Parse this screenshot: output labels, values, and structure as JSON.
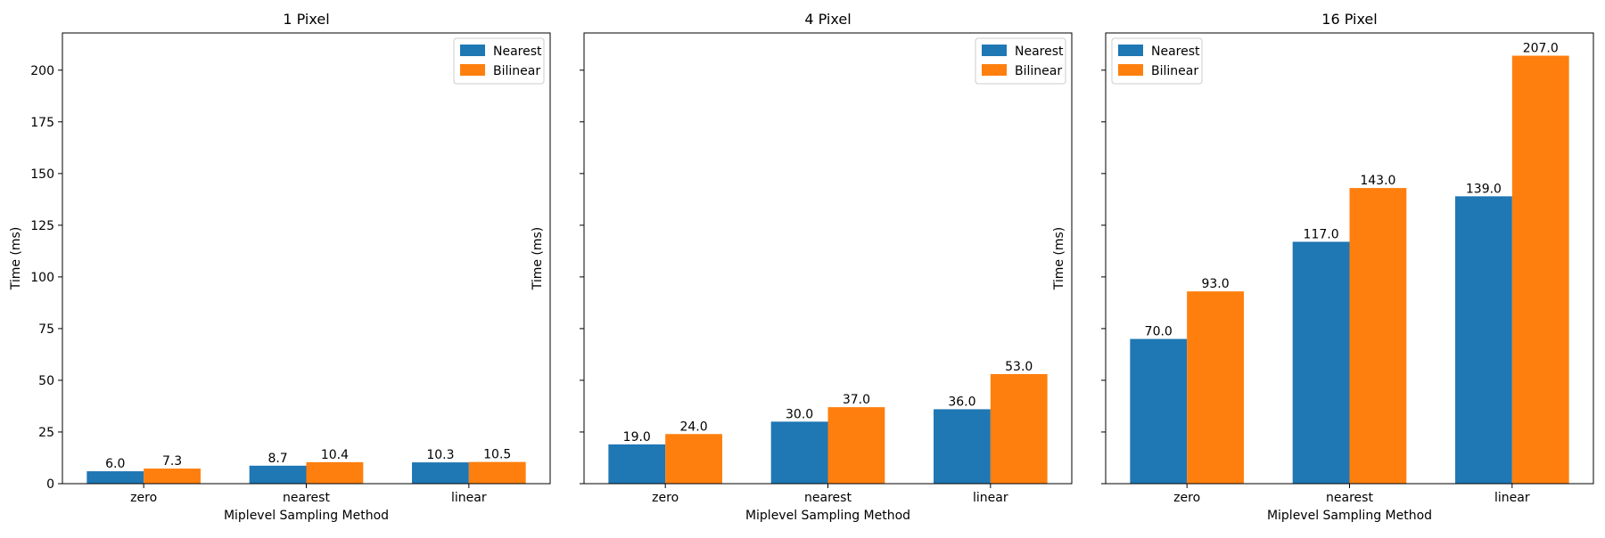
{
  "chart_data": [
    {
      "type": "bar",
      "title": "1 Pixel",
      "xlabel": "Miplevel Sampling Method",
      "ylabel": "Time (ms)",
      "categories": [
        "zero",
        "nearest",
        "linear"
      ],
      "series": [
        {
          "name": "Nearest",
          "values": [
            6.0,
            8.7,
            10.3
          ],
          "labels": [
            "6.0",
            "8.7",
            "10.3"
          ],
          "color": "#1f77b4"
        },
        {
          "name": "Bilinear",
          "values": [
            7.3,
            10.4,
            10.5
          ],
          "labels": [
            "7.3",
            "10.4",
            "10.5"
          ],
          "color": "#ff7f0e"
        }
      ],
      "ylim": [
        0,
        218
      ],
      "yticks": [
        "0",
        "25",
        "50",
        "75",
        "100",
        "125",
        "150",
        "175",
        "200"
      ],
      "show_ytick_labels": true,
      "legend": "top-right",
      "grid": false
    },
    {
      "type": "bar",
      "title": "4 Pixel",
      "xlabel": "Miplevel Sampling Method",
      "ylabel": "Time (ms)",
      "categories": [
        "zero",
        "nearest",
        "linear"
      ],
      "series": [
        {
          "name": "Nearest",
          "values": [
            19.0,
            30.0,
            36.0
          ],
          "labels": [
            "19.0",
            "30.0",
            "36.0"
          ],
          "color": "#1f77b4"
        },
        {
          "name": "Bilinear",
          "values": [
            24.0,
            37.0,
            53.0
          ],
          "labels": [
            "24.0",
            "37.0",
            "53.0"
          ],
          "color": "#ff7f0e"
        }
      ],
      "ylim": [
        0,
        218
      ],
      "yticks": [
        "0",
        "25",
        "50",
        "75",
        "100",
        "125",
        "150",
        "175",
        "200"
      ],
      "show_ytick_labels": false,
      "legend": "top-right",
      "grid": false
    },
    {
      "type": "bar",
      "title": "16 Pixel",
      "xlabel": "Miplevel Sampling Method",
      "ylabel": "Time (ms)",
      "categories": [
        "zero",
        "nearest",
        "linear"
      ],
      "series": [
        {
          "name": "Nearest",
          "values": [
            70.0,
            117.0,
            139.0
          ],
          "labels": [
            "70.0",
            "117.0",
            "139.0"
          ],
          "color": "#1f77b4"
        },
        {
          "name": "Bilinear",
          "values": [
            93.0,
            143.0,
            207.0
          ],
          "labels": [
            "93.0",
            "143.0",
            "207.0"
          ],
          "color": "#ff7f0e"
        }
      ],
      "ylim": [
        0,
        218
      ],
      "yticks": [
        "0",
        "25",
        "50",
        "75",
        "100",
        "125",
        "150",
        "175",
        "200"
      ],
      "show_ytick_labels": false,
      "legend": "top-left",
      "grid": false
    }
  ]
}
